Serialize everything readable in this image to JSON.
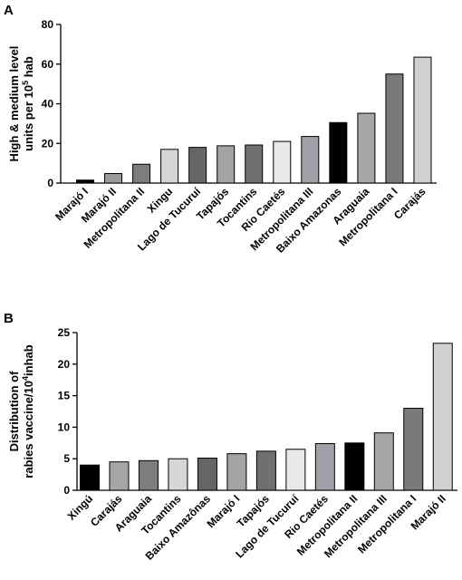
{
  "chart_data": [
    {
      "type": "bar",
      "panel": "A",
      "ylabel_lines": [
        "High & medium level",
        "units per 10",
        "5",
        " hab"
      ],
      "ylim": [
        0,
        80
      ],
      "yticks": [
        0,
        20,
        40,
        60,
        80
      ],
      "categories": [
        "Marajó I",
        "Marajó II",
        "Metropolitana II",
        "Xingu",
        "Lago de Tucuruí",
        "Tapajós",
        "Tocantins",
        "Rio Caetés",
        "Metropolitana III",
        "Baixo Amazonas",
        "Araguaia",
        "Metropolitana I",
        "Carajás"
      ],
      "values": [
        1.5,
        4.8,
        9.5,
        17,
        18,
        18.8,
        19.2,
        21,
        23.5,
        30.5,
        35.2,
        55,
        63.5
      ],
      "colors": [
        "#000000",
        "#9b9b9b",
        "#7d7d7d",
        "#d6d6d6",
        "#666666",
        "#a3a3a3",
        "#707070",
        "#e8e8e8",
        "#a0a0a8",
        "#000000",
        "#a6a6a6",
        "#7a7a7a",
        "#d0d0d0"
      ],
      "grid": false
    },
    {
      "type": "bar",
      "panel": "B",
      "ylabel_lines": [
        "Distribution of",
        "rabies vaccine/10",
        "4",
        "inhab"
      ],
      "ylim": [
        0,
        25
      ],
      "yticks": [
        0,
        5,
        10,
        15,
        20,
        25
      ],
      "categories": [
        "Xingú",
        "Carajás",
        "Araguaia",
        "Tocantins",
        "Baixo Amazônas",
        "Marajó I",
        "Tapajós",
        "Lago de Tucuruí",
        "Rio Caetés",
        "Metropolitana II",
        "Metropolitana III",
        "Metropolitana I",
        "Marajó II"
      ],
      "values": [
        4.0,
        4.5,
        4.7,
        5.0,
        5.1,
        5.8,
        6.2,
        6.5,
        7.4,
        7.5,
        9.1,
        13.0,
        23.3
      ],
      "colors": [
        "#000000",
        "#a6a6a6",
        "#7d7d7d",
        "#d6d6d6",
        "#666666",
        "#a3a3a3",
        "#707070",
        "#e8e8e8",
        "#a0a0a8",
        "#000000",
        "#a6a6a6",
        "#7a7a7a",
        "#d0d0d0"
      ],
      "grid": false
    }
  ]
}
